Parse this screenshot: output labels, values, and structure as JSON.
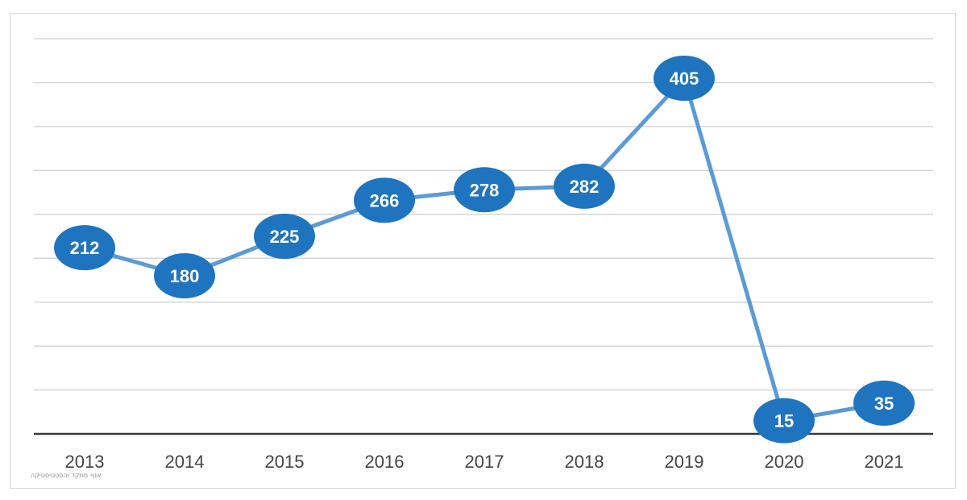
{
  "chart_data": {
    "type": "line",
    "title": "",
    "xlabel": "",
    "ylabel": "",
    "categories": [
      "2013",
      "2014",
      "2015",
      "2016",
      "2017",
      "2018",
      "2019",
      "2020",
      "2021"
    ],
    "values": [
      212,
      180,
      225,
      266,
      278,
      282,
      405,
      15,
      35
    ],
    "ylim": [
      0,
      450
    ],
    "grid": true,
    "gridlines_every": 50,
    "legend": "none",
    "data_labels": true,
    "colors": {
      "line": "#5b9bd5",
      "marker": "#1f74c0",
      "label_text": "#ffffff"
    }
  },
  "source_note": "אנף מחקר והסטטיסטיקה"
}
